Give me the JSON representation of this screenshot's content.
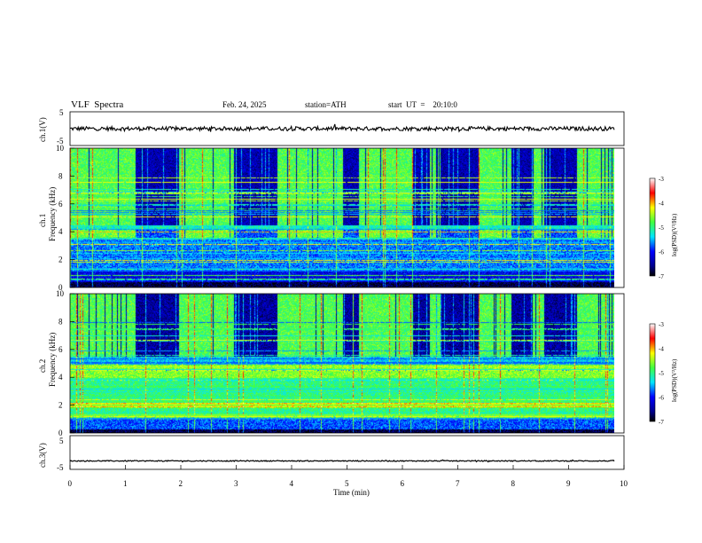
{
  "header": {
    "title": "VLF  Spectra",
    "date": "Feb. 24, 2025",
    "station": "station=ATH",
    "start_ut": "start  UT  =    20:10:0"
  },
  "chart_data": [
    {
      "type": "line",
      "ylabel": "ch.1(V)",
      "ylim": [
        -5,
        5
      ],
      "yticks": [
        "5",
        "-5"
      ],
      "xlim": [
        0,
        10
      ],
      "baseline": 0,
      "noise_amplitude": 0.6
    },
    {
      "type": "heatmap",
      "ylabel_top": "ch.1",
      "ylabel": "Frequency  (kHz)",
      "ylim": [
        0,
        10
      ],
      "yticks": [
        "0",
        "2",
        "4",
        "6",
        "8",
        "10"
      ],
      "xlim": [
        0,
        9.8
      ],
      "colorbar": {
        "label": "log(PSD)(V²/Hz)",
        "range": [
          -7,
          -3
        ],
        "ticks": [
          "-3",
          "-4",
          "-5",
          "-6",
          "-7"
        ]
      }
    },
    {
      "type": "heatmap",
      "ylabel_top": "ch.2",
      "ylabel": "Frequency  (kHz)",
      "ylim": [
        0,
        10
      ],
      "yticks": [
        "0",
        "2",
        "4",
        "6",
        "8",
        "10"
      ],
      "xlim": [
        0,
        9.8
      ],
      "colorbar": {
        "label": "log(PSD)(V²/Hz)",
        "range": [
          -7,
          -3
        ],
        "ticks": [
          "-3",
          "-4",
          "-5",
          "-6",
          "-7"
        ]
      }
    },
    {
      "type": "line",
      "ylabel": "ch.3(V)",
      "ylim": [
        -5,
        5
      ],
      "yticks": [
        "5",
        "-5"
      ],
      "xlim": [
        0,
        10
      ],
      "baseline": -2.5,
      "noise_amplitude": 0.15,
      "xlabel": "Time  (min)",
      "xticks": [
        "0",
        "1",
        "2",
        "3",
        "4",
        "5",
        "6",
        "7",
        "8",
        "9",
        "10"
      ]
    }
  ]
}
